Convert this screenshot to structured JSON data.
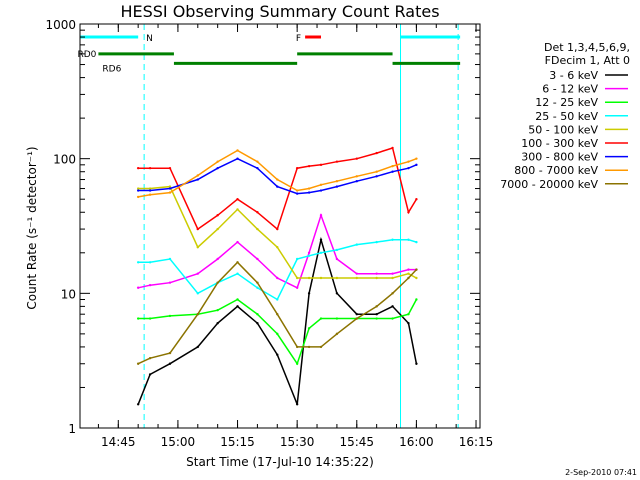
{
  "chart_data": {
    "type": "line",
    "title": "HESSI Observing Summary Count Rates",
    "xlabel": "Start Time (17-Jul-10 14:35:22)",
    "ylabel": "Count Rate (s⁻¹ detector⁻¹)",
    "x_range": [
      "14:35:22",
      "16:16:00"
    ],
    "ylim": [
      1,
      1000
    ],
    "yscale": "log",
    "grid": false,
    "legend_position": "right",
    "x_ticks": [
      "14:45",
      "15:00",
      "15:15",
      "15:30",
      "15:45",
      "16:00",
      "16:15"
    ],
    "y_ticks": [
      "1",
      "10",
      "100",
      "1000"
    ],
    "legend_header": [
      "Det 1,3,4,5,6,9,",
      "FDecim 1, Att 0"
    ],
    "series": [
      {
        "name": "3 - 6 keV",
        "color": "#000000",
        "x": [
          "14:50:00",
          "14:53:00",
          "14:58:00",
          "15:05:00",
          "15:10:00",
          "15:15:00",
          "15:20:00",
          "15:25:00",
          "15:30:00",
          "15:33:00",
          "15:36:00",
          "15:40:00",
          "15:45:00",
          "15:50:00",
          "15:54:00",
          "15:58:00",
          "16:00:00"
        ],
        "y": [
          1.5,
          2.5,
          3,
          4,
          6,
          8,
          6,
          3.5,
          1.5,
          10,
          25,
          10,
          7,
          7,
          8,
          6,
          3
        ]
      },
      {
        "name": "6 - 12 keV",
        "color": "#ff00ff",
        "x": [
          "14:50:00",
          "14:53:00",
          "14:58:00",
          "15:05:00",
          "15:10:00",
          "15:15:00",
          "15:20:00",
          "15:25:00",
          "15:30:00",
          "15:33:00",
          "15:36:00",
          "15:40:00",
          "15:45:00",
          "15:50:00",
          "15:54:00",
          "15:58:00",
          "16:00:00"
        ],
        "y": [
          11,
          11.5,
          12,
          14,
          18,
          24,
          18,
          13,
          11,
          20,
          38,
          18,
          14,
          14,
          14,
          15,
          15
        ]
      },
      {
        "name": "12 - 25 keV",
        "color": "#00ff00",
        "x": [
          "14:50:00",
          "14:53:00",
          "14:58:00",
          "15:05:00",
          "15:10:00",
          "15:15:00",
          "15:20:00",
          "15:25:00",
          "15:30:00",
          "15:33:00",
          "15:36:00",
          "15:40:00",
          "15:45:00",
          "15:50:00",
          "15:54:00",
          "15:58:00",
          "16:00:00"
        ],
        "y": [
          6.5,
          6.5,
          6.8,
          7,
          7.5,
          9,
          7,
          5,
          3,
          5.5,
          6.5,
          6.5,
          6.5,
          6.5,
          6.5,
          7,
          9
        ]
      },
      {
        "name": "25 - 50 keV",
        "color": "#00ffff",
        "x": [
          "14:50:00",
          "14:53:00",
          "14:58:00",
          "15:05:00",
          "15:10:00",
          "15:15:00",
          "15:20:00",
          "15:25:00",
          "15:30:00",
          "15:33:00",
          "15:36:00",
          "15:40:00",
          "15:45:00",
          "15:50:00",
          "15:54:00",
          "15:58:00",
          "16:00:00"
        ],
        "y": [
          17,
          17,
          18,
          10,
          12,
          14,
          11,
          9,
          18,
          19,
          20,
          21,
          23,
          24,
          25,
          25,
          24
        ]
      },
      {
        "name": "50 - 100 keV",
        "color": "#cccc00",
        "x": [
          "14:50:00",
          "14:53:00",
          "14:58:00",
          "15:05:00",
          "15:10:00",
          "15:15:00",
          "15:20:00",
          "15:25:00",
          "15:30:00",
          "15:33:00",
          "15:36:00",
          "15:40:00",
          "15:45:00",
          "15:50:00",
          "15:54:00",
          "15:58:00",
          "16:00:00"
        ],
        "y": [
          60,
          60,
          62,
          22,
          30,
          42,
          30,
          22,
          13,
          13,
          13,
          13,
          13,
          13,
          13,
          14,
          13
        ]
      },
      {
        "name": "100 - 300 keV",
        "color": "#ff0000",
        "x": [
          "14:50:00",
          "14:53:00",
          "14:58:00",
          "15:05:00",
          "15:10:00",
          "15:15:00",
          "15:20:00",
          "15:25:00",
          "15:30:00",
          "15:33:00",
          "15:36:00",
          "15:40:00",
          "15:45:00",
          "15:50:00",
          "15:54:00",
          "15:58:00",
          "16:00:00"
        ],
        "y": [
          85,
          85,
          85,
          30,
          38,
          50,
          40,
          30,
          85,
          88,
          90,
          95,
          100,
          110,
          120,
          40,
          50
        ]
      },
      {
        "name": "300 - 800 keV",
        "color": "#0000ff",
        "x": [
          "14:50:00",
          "14:53:00",
          "14:58:00",
          "15:05:00",
          "15:10:00",
          "15:15:00",
          "15:20:00",
          "15:25:00",
          "15:30:00",
          "15:33:00",
          "15:36:00",
          "15:40:00",
          "15:45:00",
          "15:50:00",
          "15:54:00",
          "15:58:00",
          "16:00:00"
        ],
        "y": [
          58,
          58,
          60,
          70,
          85,
          100,
          85,
          62,
          55,
          56,
          58,
          62,
          68,
          74,
          80,
          85,
          90
        ]
      },
      {
        "name": "800 - 7000 keV",
        "color": "#ff9900",
        "x": [
          "14:50:00",
          "14:53:00",
          "14:58:00",
          "15:05:00",
          "15:10:00",
          "15:15:00",
          "15:20:00",
          "15:25:00",
          "15:30:00",
          "15:33:00",
          "15:36:00",
          "15:40:00",
          "15:45:00",
          "15:50:00",
          "15:54:00",
          "15:58:00",
          "16:00:00"
        ],
        "y": [
          52,
          54,
          56,
          75,
          95,
          115,
          95,
          70,
          58,
          60,
          64,
          68,
          74,
          80,
          88,
          95,
          100
        ]
      },
      {
        "name": "7000 - 20000 keV",
        "color": "#8b7300",
        "x": [
          "14:50:00",
          "14:53:00",
          "14:58:00",
          "15:05:00",
          "15:10:00",
          "15:15:00",
          "15:20:00",
          "15:25:00",
          "15:30:00",
          "15:33:00",
          "15:36:00",
          "15:40:00",
          "15:45:00",
          "15:50:00",
          "15:54:00",
          "15:58:00",
          "16:00:00"
        ],
        "y": [
          3,
          3.3,
          3.6,
          7,
          12,
          17,
          12,
          7,
          4,
          4,
          4,
          5,
          6.5,
          8,
          10,
          13,
          15
        ]
      }
    ],
    "flag_bars": [
      {
        "label": "N",
        "color": "#00ffff",
        "y": 800,
        "segments": [
          [
            "14:35:22",
            "14:50:00"
          ],
          [
            "15:56:00",
            "16:11:00"
          ]
        ]
      },
      {
        "label": "F",
        "color": "#ff0000",
        "y": 800,
        "segments": [
          [
            "15:32:00",
            "15:36:00"
          ]
        ]
      },
      {
        "label": "RD0",
        "color": "#008000",
        "y": 600,
        "segments": [
          [
            "14:40:00",
            "14:59:00"
          ],
          [
            "15:30:00",
            "15:54:00"
          ]
        ]
      },
      {
        "label": "RD6",
        "color": "#008000",
        "y": 510,
        "segments": [
          [
            "14:59:00",
            "15:30:00"
          ],
          [
            "15:54:00",
            "16:11:00"
          ]
        ]
      }
    ],
    "vertical_lines": [
      {
        "time": "14:35:22",
        "color": "#00ffff",
        "style": "solid"
      },
      {
        "time": "14:51:30",
        "color": "#00ffff",
        "style": "dashed"
      },
      {
        "time": "15:56:00",
        "color": "#00ffff",
        "style": "solid"
      },
      {
        "time": "16:10:30",
        "color": "#00ffff",
        "style": "dashed"
      }
    ],
    "date_stamp": "2-Sep-2010 07:41"
  }
}
